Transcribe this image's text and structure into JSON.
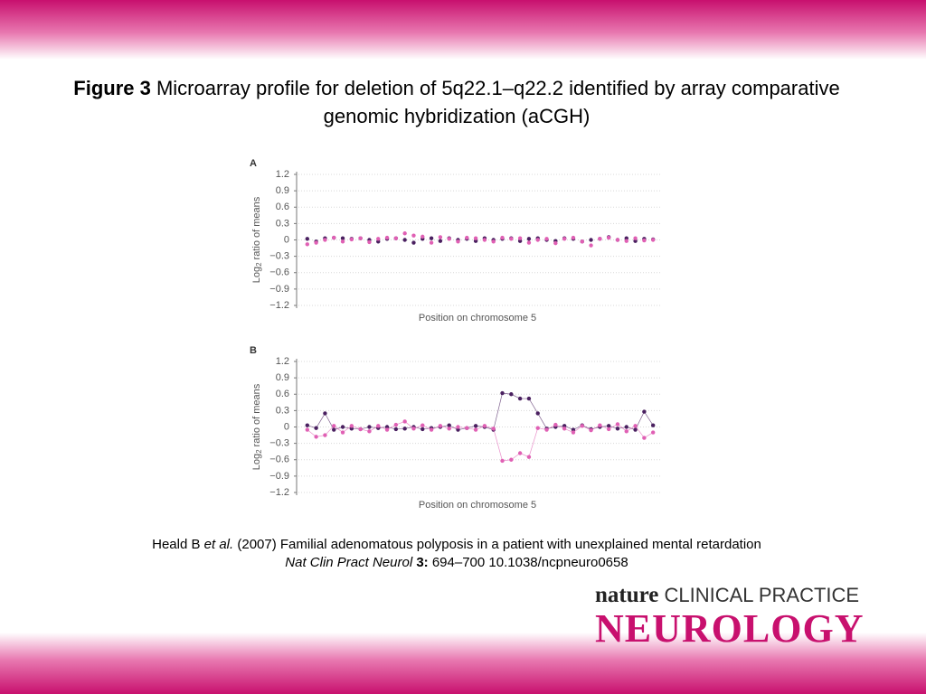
{
  "title_bold": "Figure 3",
  "title_rest": "Microarray profile for deletion of 5q22.1–q22.2 identified by array comparative genomic hybridization (aCGH)",
  "citation": {
    "author": "Heald B",
    "etal": "et al.",
    "rest": "(2007) Familial adenomatous polyposis in a patient with unexplained mental retardation",
    "journal": "Nat Clin Pract Neurol",
    "volume": "3:",
    "pages": "694–700 10.1038/ncpneuro0658"
  },
  "logo": {
    "nature": "nature",
    "clinical": "CLINICAL PRACTICE",
    "neurology": "NEUROLOGY"
  },
  "chart_data": [
    {
      "type": "scatter",
      "panel": "A",
      "ylabel": "Log",
      "ylabel_subscript": "2",
      "ylabel_rest": "ratio of means",
      "xlabel": "Position on chromosome 5",
      "connect": false,
      "grid": true,
      "x": [
        1,
        2,
        3,
        4,
        5,
        6,
        7,
        8,
        9,
        10,
        11,
        12,
        13,
        14,
        15,
        16,
        17,
        18,
        19,
        20,
        21,
        22,
        23,
        24,
        25,
        26,
        27,
        28,
        29,
        30,
        31,
        32,
        33,
        34,
        35,
        36,
        37,
        38,
        39,
        40
      ],
      "xlim": [
        0,
        41
      ],
      "ylim": [
        -1.2,
        1.2
      ],
      "yticks": [
        1.2,
        0.9,
        0.6,
        0.3,
        0,
        {
          "value": -0.3,
          "label": "−0.3"
        },
        {
          "value": -0.6,
          "label": "−0.6"
        },
        {
          "value": -0.9,
          "label": "−0.9"
        },
        {
          "value": -1.2,
          "label": "−1.2"
        }
      ],
      "series": [
        {
          "color": "#4a2060",
          "values": [
            0.02,
            -0.03,
            0.03,
            0.04,
            0.03,
            0.02,
            0.03,
            0,
            -0.03,
            0.02,
            0.03,
            0,
            -0.05,
            0.02,
            0.03,
            -0.02,
            0.03,
            0,
            0.02,
            -0.02,
            0.03,
            0,
            0.02,
            0.03,
            -0.02,
            0.02,
            0.03,
            0,
            -0.02,
            0.03,
            0.02,
            -0.03,
            0,
            0.02,
            0.05,
            0,
            0.03,
            -0.02,
            0.02,
            0.01
          ]
        },
        {
          "color": "#e060b4",
          "values": [
            -0.08,
            -0.05,
            0,
            0.04,
            -0.03,
            0.01,
            0.03,
            -0.04,
            0.02,
            0.04,
            0.03,
            0.12,
            0.08,
            0.06,
            -0.05,
            0.05,
            0.02,
            -0.03,
            0.04,
            0.03,
            0,
            -0.03,
            0.04,
            0.02,
            0.03,
            -0.05,
            0,
            0.02,
            -0.06,
            0.02,
            0.04,
            -0.03,
            -0.1,
            0.02,
            0.04,
            0,
            -0.02,
            0.03,
            -0.01,
            0
          ]
        }
      ]
    },
    {
      "type": "scatter",
      "panel": "B",
      "ylabel": "Log",
      "ylabel_subscript": "2",
      "ylabel_rest": "ratio of means",
      "xlabel": "Position on chromosome 5",
      "connect": true,
      "grid": true,
      "x": [
        1,
        2,
        3,
        4,
        5,
        6,
        7,
        8,
        9,
        10,
        11,
        12,
        13,
        14,
        15,
        16,
        17,
        18,
        19,
        20,
        21,
        22,
        23,
        24,
        25,
        26,
        27,
        28,
        29,
        30,
        31,
        32,
        33,
        34,
        35,
        36,
        37,
        38,
        39,
        40
      ],
      "xlim": [
        0,
        41
      ],
      "ylim": [
        -1.2,
        1.2
      ],
      "yticks": [
        1.2,
        0.9,
        0.6,
        0.3,
        0,
        {
          "value": -0.3,
          "label": "−0.3"
        },
        {
          "value": -0.6,
          "label": "−0.6"
        },
        {
          "value": -0.9,
          "label": "−0.9"
        },
        {
          "value": -1.2,
          "label": "−1.2"
        }
      ],
      "series": [
        {
          "color": "#4a2060",
          "values": [
            0.03,
            -0.02,
            0.25,
            -0.05,
            0,
            -0.03,
            -0.04,
            0,
            -0.02,
            0,
            -0.04,
            -0.03,
            0,
            -0.04,
            -0.02,
            0,
            0.03,
            -0.05,
            -0.02,
            0.02,
            0,
            -0.05,
            0.62,
            0.6,
            0.52,
            0.52,
            0.25,
            -0.03,
            0,
            0.02,
            -0.05,
            0.03,
            -0.04,
            0,
            0.02,
            -0.03,
            0,
            -0.05,
            0.28,
            0.03
          ]
        },
        {
          "color": "#e060b4",
          "values": [
            -0.05,
            -0.18,
            -0.15,
            0.02,
            -0.1,
            0.02,
            -0.04,
            -0.08,
            0.02,
            -0.05,
            0.04,
            0.1,
            -0.03,
            0.03,
            -0.05,
            0.02,
            -0.03,
            0,
            -0.02,
            -0.05,
            0.02,
            -0.03,
            -0.62,
            -0.6,
            -0.48,
            -0.55,
            -0.02,
            -0.05,
            0.04,
            -0.03,
            -0.1,
            0.02,
            -0.06,
            0.03,
            -0.04,
            0.05,
            -0.08,
            0.02,
            -0.2,
            -0.1
          ]
        }
      ]
    }
  ]
}
